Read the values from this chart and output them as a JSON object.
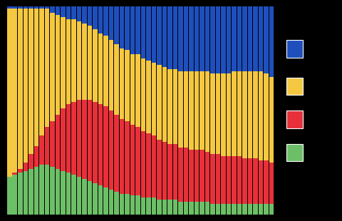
{
  "n_bars": 50,
  "colors": [
    "#6dbf67",
    "#e8303a",
    "#f5c842",
    "#1e4fbd"
  ],
  "background": "#000000",
  "green_values": [
    18,
    19,
    20,
    21,
    22,
    23,
    24,
    24,
    23,
    22,
    21,
    20,
    19,
    18,
    17,
    16,
    15,
    14,
    13,
    12,
    11,
    10,
    10,
    9,
    9,
    8,
    8,
    8,
    7,
    7,
    7,
    7,
    6,
    6,
    6,
    6,
    6,
    6,
    5,
    5,
    5,
    5,
    5,
    5,
    5,
    5,
    5,
    5,
    5,
    5
  ],
  "red_values": [
    0,
    1,
    2,
    4,
    7,
    10,
    14,
    18,
    22,
    26,
    30,
    33,
    35,
    37,
    38,
    39,
    39,
    39,
    39,
    38,
    37,
    36,
    35,
    34,
    33,
    32,
    31,
    30,
    29,
    28,
    27,
    27,
    26,
    26,
    25,
    25,
    25,
    24,
    24,
    24,
    23,
    23,
    23,
    23,
    22,
    22,
    22,
    21,
    21,
    20
  ],
  "yellow_values": [
    81,
    79,
    77,
    74,
    70,
    66,
    61,
    57,
    52,
    48,
    44,
    41,
    40,
    38,
    37,
    36,
    35,
    34,
    34,
    34,
    34,
    34,
    34,
    34,
    35,
    35,
    35,
    35,
    36,
    36,
    36,
    36,
    37,
    37,
    38,
    38,
    38,
    39,
    39,
    39,
    40,
    40,
    41,
    41,
    42,
    42,
    42,
    43,
    42,
    41
  ],
  "blue_values": [
    1,
    1,
    1,
    1,
    1,
    1,
    1,
    1,
    3,
    4,
    5,
    6,
    6,
    7,
    8,
    9,
    11,
    13,
    14,
    16,
    18,
    20,
    21,
    23,
    23,
    25,
    26,
    27,
    28,
    29,
    30,
    30,
    31,
    31,
    31,
    31,
    31,
    31,
    32,
    32,
    32,
    32,
    31,
    31,
    31,
    31,
    31,
    31,
    32,
    34
  ]
}
